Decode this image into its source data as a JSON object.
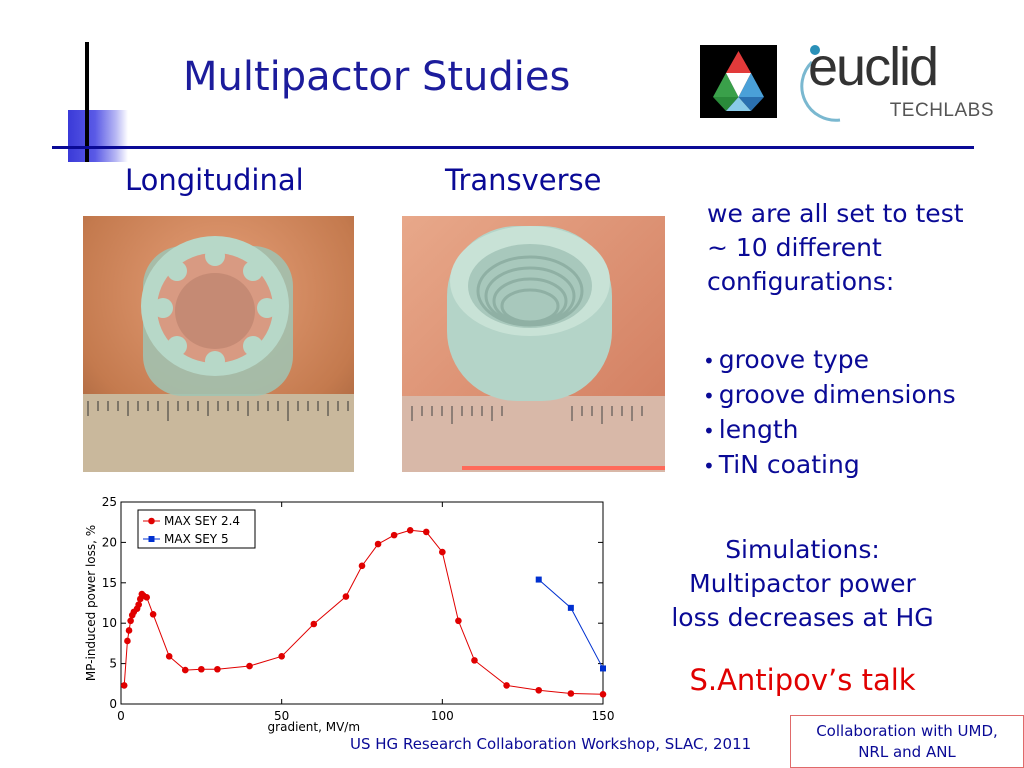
{
  "slide": {
    "title": "Multipactor Studies",
    "logos": {
      "euclid_word": "euclid",
      "euclid_sub": "TECHLABS"
    },
    "photos": [
      {
        "label": "Longitudinal"
      },
      {
        "label": "Transverse"
      }
    ],
    "intro_lines": [
      "we are all set to test",
      "~ 10 different",
      "configurations:"
    ],
    "bullets": [
      "groove type",
      "groove dimensions",
      "length",
      "TiN coating"
    ],
    "simulations_lines": [
      "Simulations:",
      "Multipactor power",
      "loss decreases at HG"
    ],
    "talk": "S.Antipov’s talk",
    "footer": "US HG Research Collaboration Workshop, SLAC, 2011",
    "collaboration_lines": [
      "Collaboration with UMD,",
      "NRL and ANL"
    ]
  },
  "colors": {
    "text_blue": "#0a0a96",
    "series1": "#e00000",
    "series2": "#0030d0",
    "talk_red": "#e00000"
  },
  "chart_data": {
    "type": "line",
    "xlabel": "gradient, MV/m",
    "ylabel": "MP-induced power loss, %",
    "xlim": [
      0,
      150
    ],
    "ylim": [
      0,
      25
    ],
    "xticks": [
      0,
      50,
      100,
      150
    ],
    "yticks": [
      0,
      5,
      10,
      15,
      20,
      25
    ],
    "grid": false,
    "legend": "top-left",
    "series": [
      {
        "name": "MAX SEY 2.4",
        "marker": "circle",
        "x": [
          1,
          2,
          2.5,
          3,
          3.5,
          4,
          5,
          5.5,
          6,
          6.5,
          7,
          8,
          10,
          15,
          20,
          25,
          30,
          40,
          50,
          60,
          70,
          75,
          80,
          85,
          90,
          95,
          100,
          105,
          110,
          120,
          130,
          140,
          150
        ],
        "y": [
          2.3,
          7.8,
          9.1,
          10.3,
          11.0,
          11.4,
          11.8,
          12.3,
          13.0,
          13.6,
          13.4,
          13.2,
          11.1,
          5.9,
          4.2,
          4.3,
          4.3,
          4.7,
          5.9,
          9.9,
          13.3,
          17.1,
          19.8,
          20.9,
          21.5,
          21.3,
          18.8,
          10.3,
          5.4,
          2.3,
          1.7,
          1.3,
          1.2
        ]
      },
      {
        "name": "MAX SEY 5",
        "marker": "square",
        "x": [
          130,
          140,
          150
        ],
        "y": [
          15.4,
          11.9,
          4.4
        ]
      }
    ]
  }
}
